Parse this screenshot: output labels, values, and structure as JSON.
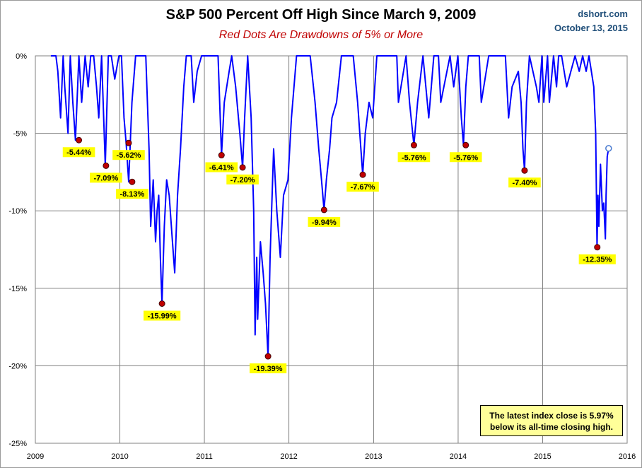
{
  "chart_data": {
    "type": "line",
    "title": "S&P 500 Percent Off High Since March 9, 2009",
    "subtitle": "Red Dots Are Drawdowns of 5% or More",
    "source": "dshort.com",
    "source_date": "October 13, 2015",
    "xlabel": "",
    "ylabel": "",
    "x_range": [
      "2009-01-01",
      "2016-01-01"
    ],
    "ylim": [
      -25,
      0
    ],
    "y_ticks": [
      "0%",
      "-5%",
      "-10%",
      "-15%",
      "-20%",
      "-25%"
    ],
    "x_ticks": [
      "2009",
      "2010",
      "2011",
      "2012",
      "2013",
      "2014",
      "2015",
      "2016"
    ],
    "grid": true,
    "series_color": "#0000ff",
    "dot_color": "#c00000",
    "label_bg": "#ffff00",
    "series": [
      {
        "x": [
          "2009-03-09",
          "2009-03-23",
          "2009-03-31",
          "2009-04-08",
          "2009-04-20",
          "2009-05-01",
          "2009-05-08",
          "2009-05-22",
          "2009-06-01",
          "2009-06-12",
          "2009-06-23",
          "2009-07-08",
          "2009-07-20",
          "2009-08-04",
          "2009-08-17",
          "2009-08-28",
          "2009-09-10",
          "2009-09-22",
          "2009-10-02",
          "2009-10-14",
          "2009-10-30",
          "2009-11-12",
          "2009-11-25",
          "2009-12-10",
          "2009-12-28",
          "2010-01-08",
          "2010-01-19",
          "2010-01-28",
          "2010-02-08",
          "2010-02-22",
          "2010-03-10",
          "2010-03-25",
          "2010-04-05",
          "2010-04-23",
          "2010-05-07",
          "2010-05-14",
          "2010-05-25",
          "2010-06-04",
          "2010-06-11",
          "2010-06-18",
          "2010-06-25",
          "2010-07-02",
          "2010-07-12",
          "2010-07-22",
          "2010-08-02",
          "2010-08-16",
          "2010-08-26",
          "2010-09-07",
          "2010-09-20",
          "2010-10-04",
          "2010-10-15",
          "2010-11-05",
          "2010-11-16",
          "2010-12-01",
          "2010-12-20",
          "2011-01-10",
          "2011-02-18",
          "2011-03-01",
          "2011-03-16",
          "2011-03-28",
          "2011-04-18",
          "2011-04-29",
          "2011-05-16",
          "2011-06-03",
          "2011-06-15",
          "2011-06-24",
          "2011-07-07",
          "2011-07-22",
          "2011-08-02",
          "2011-08-08",
          "2011-08-15",
          "2011-08-19",
          "2011-08-31",
          "2011-09-12",
          "2011-09-22",
          "2011-10-03",
          "2011-10-12",
          "2011-10-27",
          "2011-11-10",
          "2011-11-25",
          "2011-12-09",
          "2011-12-28",
          "2012-01-12",
          "2012-02-03",
          "2012-03-01",
          "2012-03-15",
          "2012-04-02",
          "2012-04-23",
          "2012-05-09",
          "2012-05-21",
          "2012-06-01",
          "2012-06-11",
          "2012-06-25",
          "2012-07-05",
          "2012-07-25",
          "2012-08-15",
          "2012-09-14",
          "2012-10-05",
          "2012-10-24",
          "2012-11-07",
          "2012-11-15",
          "2012-11-26",
          "2012-12-12",
          "2012-12-28",
          "2013-01-15",
          "2013-02-11",
          "2013-03-05",
          "2013-04-11",
          "2013-04-18",
          "2013-05-21",
          "2013-06-05",
          "2013-06-24",
          "2013-07-10",
          "2013-08-02",
          "2013-08-27",
          "2013-09-18",
          "2013-10-08",
          "2013-10-18",
          "2013-11-27",
          "2013-12-13",
          "2013-12-31",
          "2014-01-15",
          "2014-01-24",
          "2014-02-03",
          "2014-02-14",
          "2014-03-07",
          "2014-04-02",
          "2014-04-11",
          "2014-05-13",
          "2014-06-24",
          "2014-07-24",
          "2014-08-07",
          "2014-08-22",
          "2014-09-18",
          "2014-09-30",
          "2014-10-08",
          "2014-10-15",
          "2014-10-23",
          "2014-11-05",
          "2014-12-05",
          "2014-12-16",
          "2014-12-29",
          "2015-01-06",
          "2015-01-22",
          "2015-01-30",
          "2015-02-17",
          "2015-03-02",
          "2015-03-11",
          "2015-03-24",
          "2015-04-15",
          "2015-05-21",
          "2015-06-08",
          "2015-06-23",
          "2015-07-08",
          "2015-07-20",
          "2015-08-10",
          "2015-08-18",
          "2015-08-24",
          "2015-08-28",
          "2015-09-01",
          "2015-09-08",
          "2015-09-16",
          "2015-09-22",
          "2015-09-29",
          "2015-10-02",
          "2015-10-07",
          "2015-10-13"
        ],
        "values": [
          0,
          0,
          0,
          -1,
          -4,
          0,
          -2,
          -5,
          0,
          -3,
          -5.44,
          0,
          -3,
          0,
          -2,
          0,
          0,
          -2,
          -4,
          0,
          -7.09,
          0,
          0,
          -1.5,
          0,
          0,
          -4,
          -5.62,
          -8.13,
          -3,
          0,
          0,
          0,
          0,
          -6,
          -11,
          -8,
          -12,
          -10,
          -9,
          -13,
          -15.99,
          -11,
          -8,
          -9,
          -12,
          -14,
          -9,
          -6,
          -2,
          0,
          0,
          -3,
          -1,
          0,
          0,
          0,
          0,
          -6.41,
          -3,
          -1,
          0,
          -2,
          -5,
          -7.2,
          -4,
          0,
          -4,
          -10,
          -18,
          -13,
          -17,
          -12,
          -14,
          -16,
          -19.39,
          -13,
          -6,
          -10,
          -13,
          -9,
          -8,
          -4,
          0,
          0,
          0,
          0,
          -3,
          -6,
          -8,
          -9.94,
          -8,
          -6,
          -4,
          -3,
          0,
          0,
          0,
          -3,
          -6,
          -7.67,
          -5,
          -3,
          -4,
          0,
          0,
          0,
          0,
          -3,
          0,
          -3,
          -5.76,
          -3,
          0,
          -4,
          0,
          0,
          -3,
          0,
          -2,
          0,
          -4,
          -5.76,
          -2,
          0,
          0,
          0,
          -3,
          0,
          0,
          0,
          -4,
          -2,
          -1,
          -3,
          -6,
          -7.4,
          -3,
          0,
          -2,
          -3,
          0,
          -3,
          0,
          -3,
          0,
          -2,
          0,
          0,
          -2,
          0,
          -1,
          0,
          -1,
          0,
          -2,
          -5,
          -12.35,
          -9,
          -11,
          -7,
          -10,
          -9.5,
          -11.8,
          -9,
          -6.5,
          -5.97
        ]
      }
    ],
    "drawdowns": [
      {
        "date": "2009-07-08",
        "value": -5.44,
        "label": "-5.44%"
      },
      {
        "date": "2009-11-02",
        "value": -7.09,
        "label": "-7.09%"
      },
      {
        "date": "2010-02-08",
        "value": -5.62,
        "label": "-5.62%"
      },
      {
        "date": "2010-02-23",
        "value": -8.13,
        "label": "-8.13%"
      },
      {
        "date": "2010-07-02",
        "value": -15.99,
        "label": "-15.99%"
      },
      {
        "date": "2011-03-16",
        "value": -6.41,
        "label": "-6.41%"
      },
      {
        "date": "2011-06-15",
        "value": -7.2,
        "label": "-7.20%"
      },
      {
        "date": "2011-10-03",
        "value": -19.39,
        "label": "-19.39%"
      },
      {
        "date": "2012-06-01",
        "value": -9.94,
        "label": "-9.94%"
      },
      {
        "date": "2012-11-15",
        "value": -7.67,
        "label": "-7.67%"
      },
      {
        "date": "2013-06-24",
        "value": -5.76,
        "label": "-5.76%"
      },
      {
        "date": "2014-02-03",
        "value": -5.76,
        "label": "-5.76%"
      },
      {
        "date": "2014-10-15",
        "value": -7.4,
        "label": "-7.40%"
      },
      {
        "date": "2015-08-25",
        "value": -12.35,
        "label": "-12.35%"
      }
    ],
    "latest_marker": {
      "date": "2015-10-13",
      "value": -5.97
    },
    "note": {
      "line1": "The latest index close is 5.97%",
      "line2": "below its all-time closing high."
    }
  }
}
